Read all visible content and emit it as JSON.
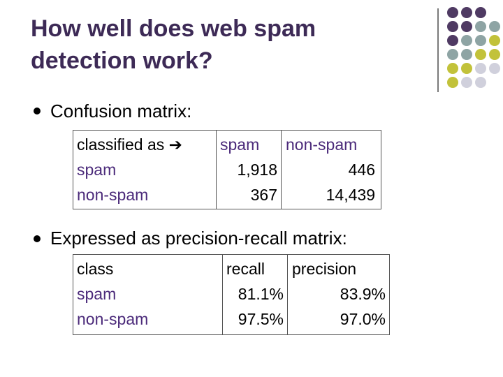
{
  "slide": {
    "title_line1": "How well does web spam",
    "title_line2": "detection work?",
    "bullets": [
      "Confusion matrix:",
      "Expressed as precision-recall matrix:"
    ]
  },
  "confusion_matrix": {
    "header": {
      "label": "classified as",
      "arrow": "➔",
      "col1": "spam",
      "col2": "non-spam"
    },
    "rows": [
      {
        "label": "spam",
        "v1": "1,918",
        "v2": "446"
      },
      {
        "label": "non-spam",
        "v1": "367",
        "v2": "14,439"
      }
    ]
  },
  "pr_matrix": {
    "header": {
      "label": "class",
      "col1": "recall",
      "col2": "precision"
    },
    "rows": [
      {
        "label": "spam",
        "v1": "81.1%",
        "v2": "83.9%"
      },
      {
        "label": "non-spam",
        "v1": "97.5%",
        "v2": "97.0%"
      }
    ]
  },
  "colors": {
    "title": "#3d2a56",
    "header_purple": "#4b2a7a",
    "dot_purple": "#4f3a63",
    "dot_teal": "#8ea4a4",
    "dot_olive": "#c2c23a",
    "dot_light": "#d0d0dc"
  }
}
